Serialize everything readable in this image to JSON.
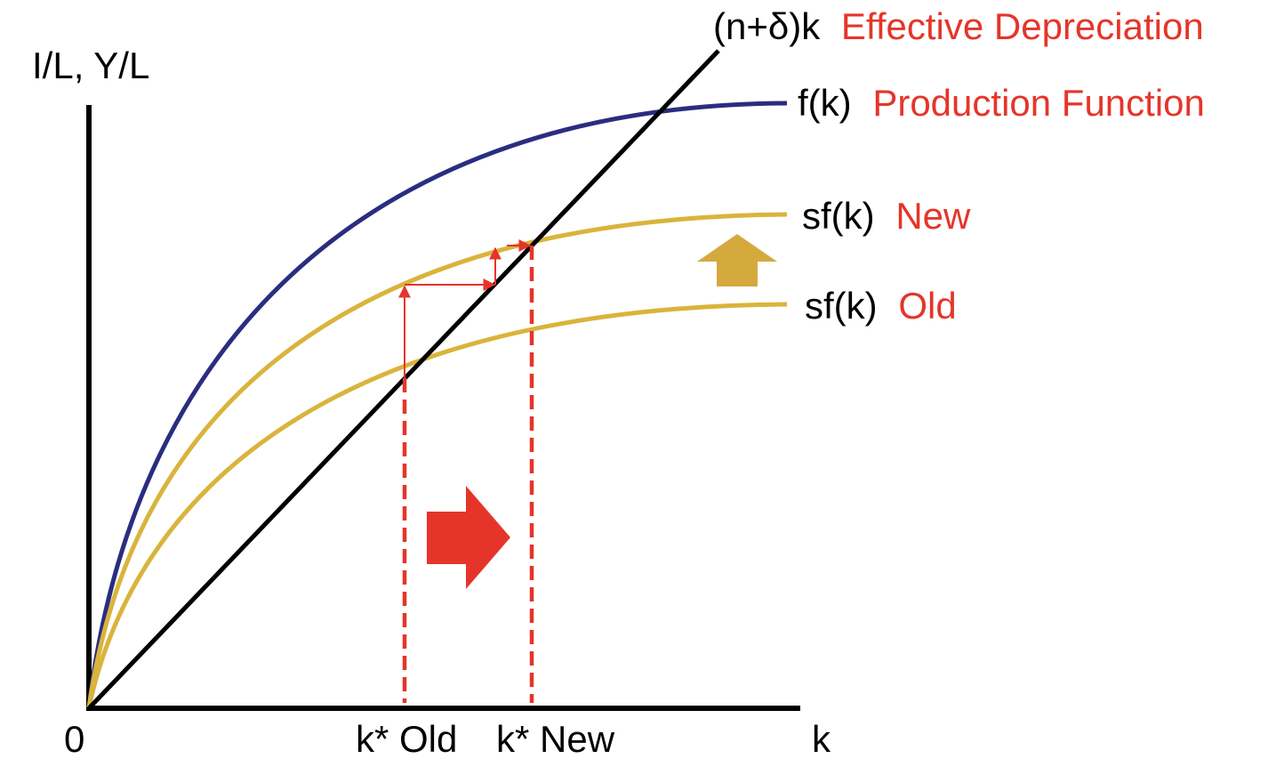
{
  "diagram": {
    "y_axis_label": "I/L, Y/L",
    "x_axis_label": "k",
    "origin_label": "0",
    "curves": {
      "depreciation": {
        "expr": "(n+δ)k",
        "name": "Effective Depreciation",
        "color": "#000000"
      },
      "production": {
        "expr": "f(k)",
        "name": "Production Function",
        "color": "#2a2d80"
      },
      "savings_new": {
        "expr": "sf(k)",
        "name": "New",
        "color": "#d9b43c"
      },
      "savings_old": {
        "expr": "sf(k)",
        "name": "Old",
        "color": "#d9b43c"
      }
    },
    "steady_states": {
      "old": "k* Old",
      "new": "k* New"
    },
    "colors": {
      "accent": "#e5352a",
      "savings": "#d9b43c",
      "production": "#2a2d80",
      "axis": "#000000",
      "up_arrow": "#d4aa3f"
    }
  }
}
